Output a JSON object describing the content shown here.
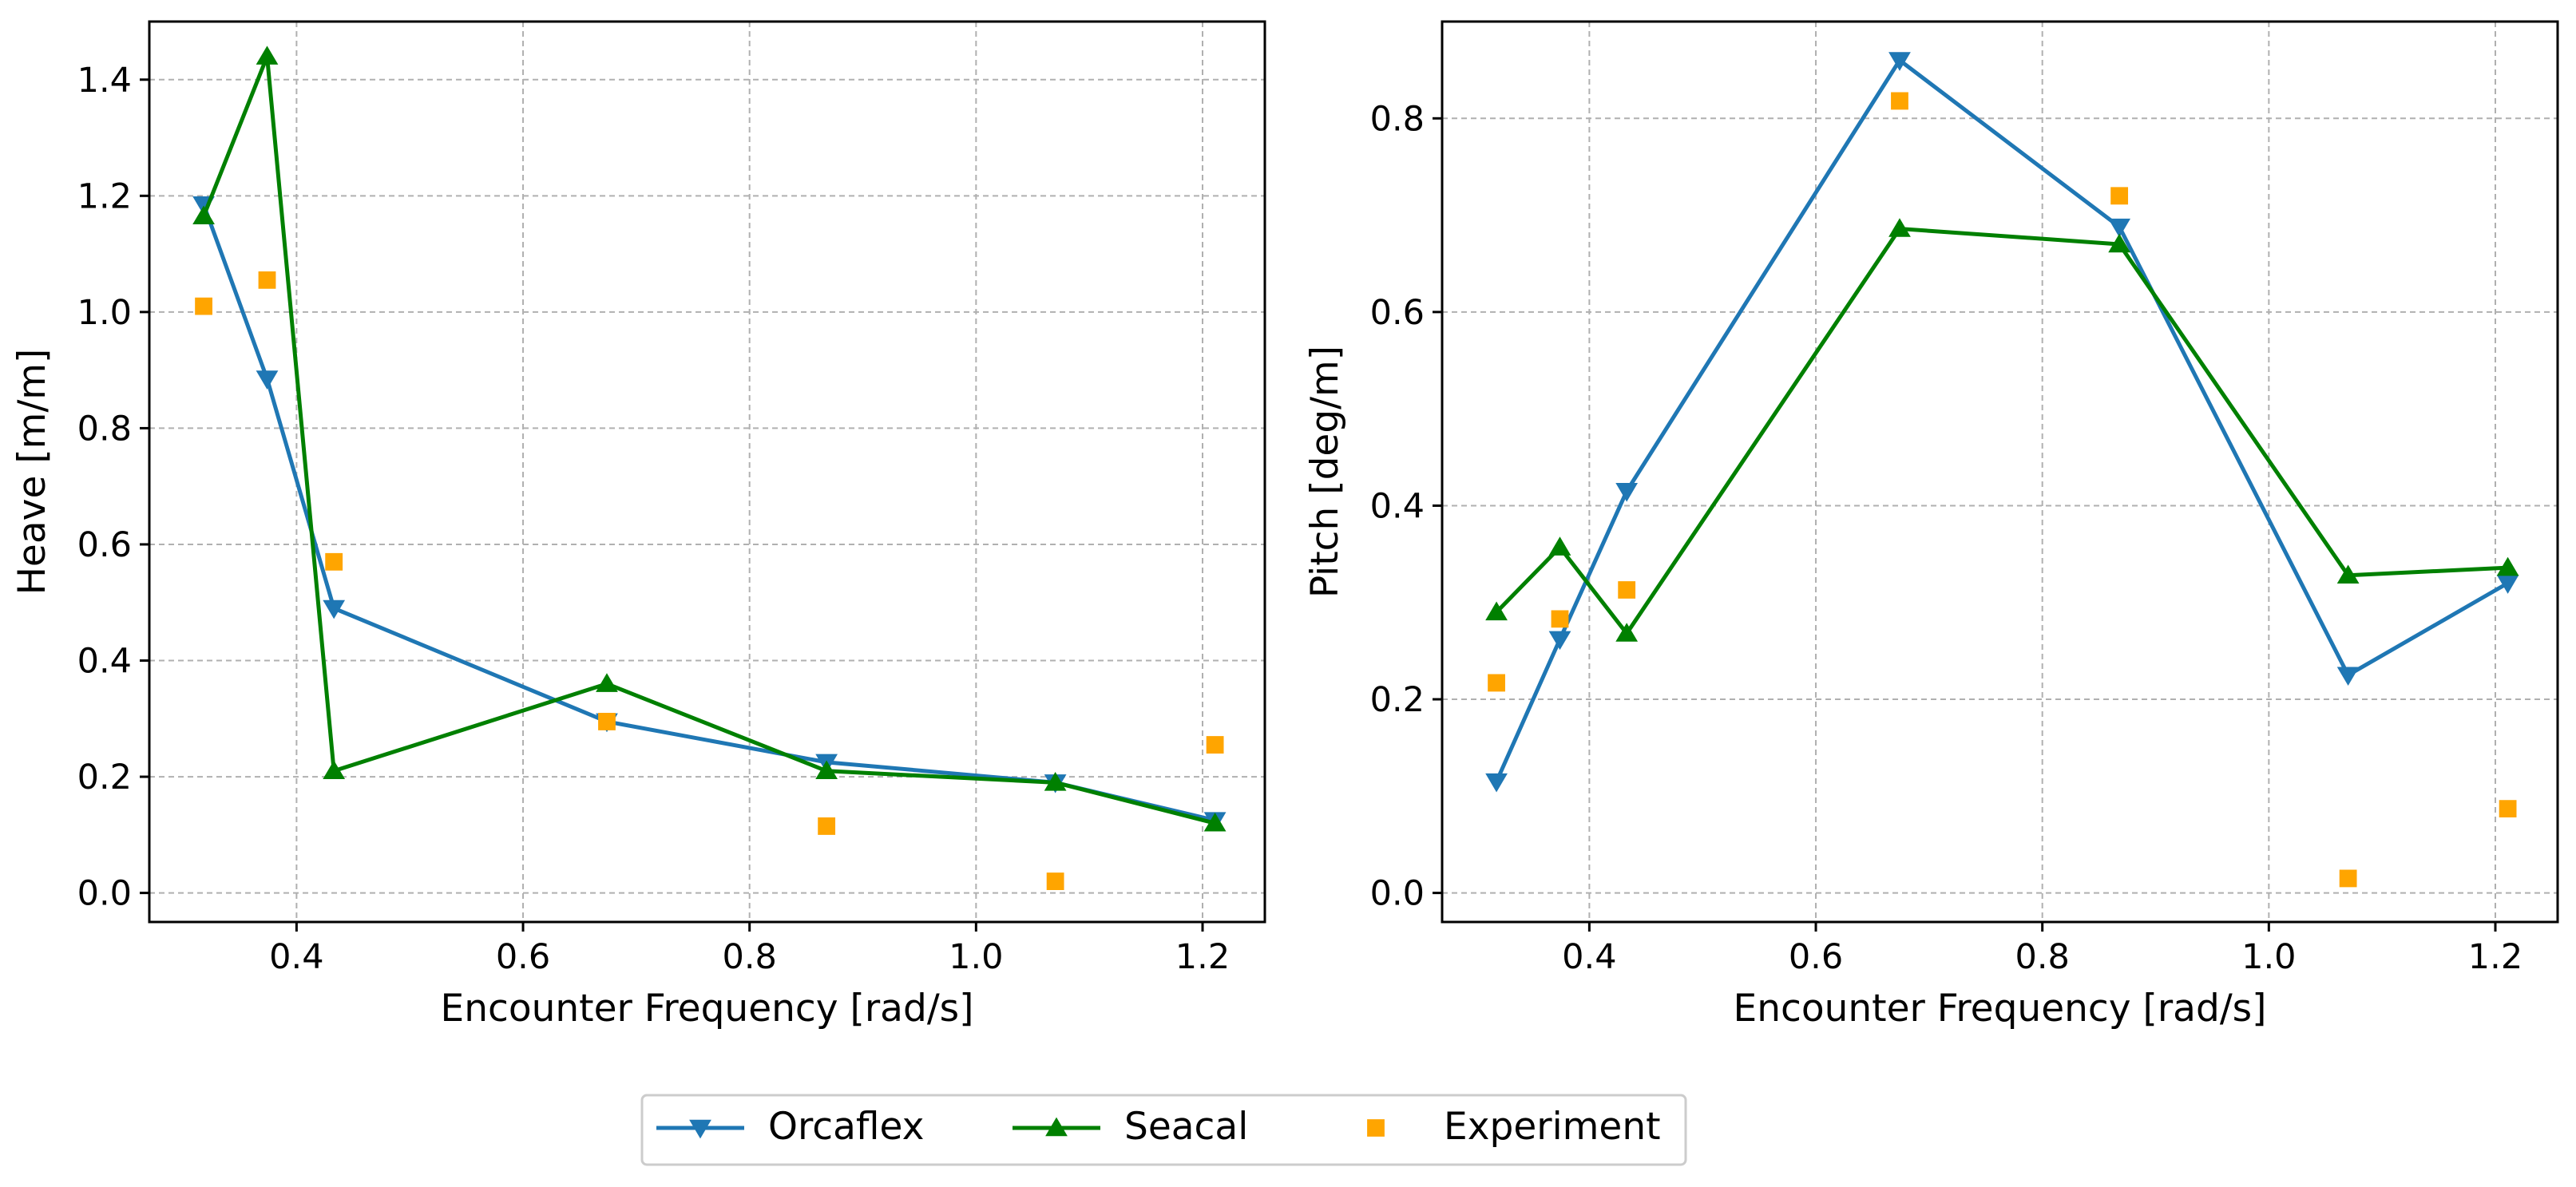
{
  "chart_data": [
    {
      "type": "line",
      "xlabel": "Encounter Frequency [rad/s]",
      "ylabel": "Heave [m/m]",
      "xlim": [
        0.27,
        1.255
      ],
      "ylim": [
        -0.05,
        1.5
      ],
      "xticks": [
        0.4,
        0.6,
        0.8,
        1.0,
        1.2
      ],
      "xtick_labels": [
        "0.4",
        "0.6",
        "0.8",
        "1.0",
        "1.2"
      ],
      "yticks": [
        0.0,
        0.2,
        0.4,
        0.6,
        0.8,
        1.0,
        1.2,
        1.4
      ],
      "ytick_labels": [
        "0.0",
        "0.2",
        "0.4",
        "0.6",
        "0.8",
        "1.0",
        "1.2",
        "1.4"
      ],
      "grid": true,
      "series": [
        {
          "name": "Orcaflex",
          "marker": "triangle-down",
          "x": [
            0.318,
            0.374,
            0.433,
            0.674,
            0.868,
            1.07,
            1.211
          ],
          "values": [
            1.185,
            0.885,
            0.49,
            0.295,
            0.225,
            0.19,
            0.125
          ]
        },
        {
          "name": "Seacal",
          "marker": "triangle-up",
          "x": [
            0.318,
            0.374,
            0.433,
            0.674,
            0.868,
            1.07,
            1.211
          ],
          "values": [
            1.165,
            1.44,
            0.21,
            0.36,
            0.21,
            0.19,
            0.12
          ]
        },
        {
          "name": "Experiment",
          "marker": "square",
          "x": [
            0.318,
            0.374,
            0.433,
            0.674,
            0.868,
            1.07,
            1.211
          ],
          "values": [
            1.01,
            1.055,
            0.57,
            0.295,
            0.115,
            0.02,
            0.255
          ]
        }
      ]
    },
    {
      "type": "line",
      "xlabel": "Encounter Frequency [rad/s]",
      "ylabel": "Pitch [deg/m]",
      "xlim": [
        0.27,
        1.255
      ],
      "ylim": [
        -0.03,
        0.9
      ],
      "xticks": [
        0.4,
        0.6,
        0.8,
        1.0,
        1.2
      ],
      "xtick_labels": [
        "0.4",
        "0.6",
        "0.8",
        "1.0",
        "1.2"
      ],
      "yticks": [
        0.0,
        0.2,
        0.4,
        0.6,
        0.8
      ],
      "ytick_labels": [
        "0.0",
        "0.2",
        "0.4",
        "0.6",
        "0.8"
      ],
      "grid": true,
      "series": [
        {
          "name": "Orcaflex",
          "marker": "triangle-down",
          "x": [
            0.318,
            0.374,
            0.433,
            0.674,
            0.868,
            1.07,
            1.211
          ],
          "values": [
            0.115,
            0.262,
            0.415,
            0.86,
            0.688,
            0.225,
            0.32
          ]
        },
        {
          "name": "Seacal",
          "marker": "triangle-up",
          "x": [
            0.318,
            0.374,
            0.433,
            0.674,
            0.868,
            1.07,
            1.211
          ],
          "values": [
            0.29,
            0.357,
            0.268,
            0.686,
            0.67,
            0.328,
            0.336
          ]
        },
        {
          "name": "Experiment",
          "marker": "square",
          "x": [
            0.318,
            0.374,
            0.433,
            0.674,
            0.868,
            1.07,
            1.211
          ],
          "values": [
            0.217,
            0.283,
            0.313,
            0.818,
            0.72,
            0.015,
            0.087
          ]
        }
      ]
    }
  ],
  "legend": {
    "placement": "bottom-center",
    "entries": [
      {
        "label": "Orcaflex",
        "marker": "triangle-down",
        "line": true
      },
      {
        "label": "Seacal",
        "marker": "triangle-up",
        "line": true
      },
      {
        "label": "Experiment",
        "marker": "square",
        "line": false
      }
    ]
  },
  "colors": {
    "Orcaflex": "#1f77b4",
    "Seacal": "#008000",
    "Experiment": "#ffa500",
    "grid": "#b0b0b0",
    "axis": "#000000"
  }
}
